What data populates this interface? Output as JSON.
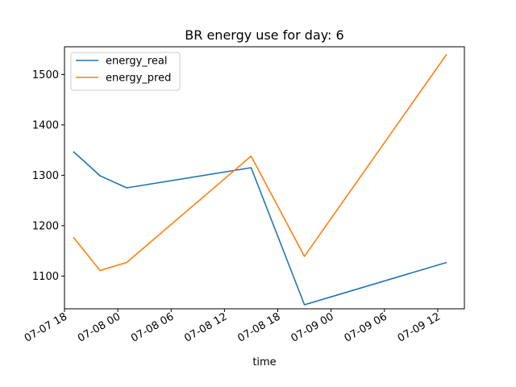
{
  "chart_data": {
    "type": "line",
    "title": "BR energy use for day: 6",
    "xlabel": "time",
    "ylabel": "",
    "x_type": "datetime",
    "x": [
      "2020-07-07 19:00",
      "2020-07-07 22:00",
      "2020-07-08 01:00",
      "2020-07-08 15:00",
      "2020-07-08 21:00",
      "2020-07-09 13:00"
    ],
    "series": [
      {
        "name": "energy_real",
        "color": "#1f77b4",
        "values": [
          1347,
          1299,
          1275,
          1315,
          1043,
          1127
        ]
      },
      {
        "name": "energy_pred",
        "color": "#ff7f0e",
        "values": [
          1177,
          1111,
          1127,
          1338,
          1139,
          1540
        ]
      }
    ],
    "xlim": [
      "2020-07-07 18:00",
      "2020-07-09 15:00"
    ],
    "ylim": [
      1035,
      1555
    ],
    "xticks": [
      {
        "at": "2020-07-07 18:00",
        "label": "07-07 18"
      },
      {
        "at": "2020-07-08 00:00",
        "label": "07-08 00"
      },
      {
        "at": "2020-07-08 06:00",
        "label": "07-08 06"
      },
      {
        "at": "2020-07-08 12:00",
        "label": "07-08 12"
      },
      {
        "at": "2020-07-08 18:00",
        "label": "07-08 18"
      },
      {
        "at": "2020-07-09 00:00",
        "label": "07-09 00"
      },
      {
        "at": "2020-07-09 06:00",
        "label": "07-09 06"
      },
      {
        "at": "2020-07-09 12:00",
        "label": "07-09 12"
      }
    ],
    "yticks": [
      1100,
      1200,
      1300,
      1400,
      1500
    ],
    "grid": false,
    "legend_position": "upper-left"
  }
}
